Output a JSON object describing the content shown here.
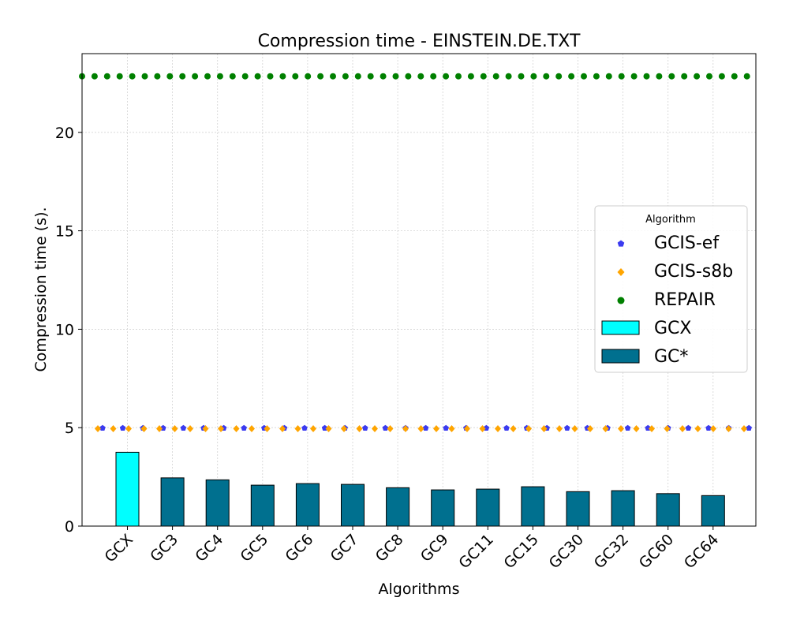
{
  "chart_data": {
    "type": "bar",
    "title": "Compression time -  EINSTEIN.DE.TXT",
    "xlabel": "Algorithms",
    "ylabel": "Compression time (s).",
    "ylim": [
      0,
      24
    ],
    "yticks": [
      0,
      5,
      10,
      15,
      20
    ],
    "grid": true,
    "legend_position": "center-right",
    "legend_title": "Algorithm",
    "categories": [
      "GCX",
      "GC3",
      "GC4",
      "GC5",
      "GC6",
      "GC7",
      "GC8",
      "GC9",
      "GC11",
      "GC15",
      "GC30",
      "GC32",
      "GC60",
      "GC64"
    ],
    "bars": [
      {
        "category": "GCX",
        "value": 3.75,
        "series": "GCX"
      },
      {
        "category": "GC3",
        "value": 2.45,
        "series": "GC*"
      },
      {
        "category": "GC4",
        "value": 2.35,
        "series": "GC*"
      },
      {
        "category": "GC5",
        "value": 2.08,
        "series": "GC*"
      },
      {
        "category": "GC6",
        "value": 2.16,
        "series": "GC*"
      },
      {
        "category": "GC7",
        "value": 2.12,
        "series": "GC*"
      },
      {
        "category": "GC8",
        "value": 1.95,
        "series": "GC*"
      },
      {
        "category": "GC9",
        "value": 1.84,
        "series": "GC*"
      },
      {
        "category": "GC11",
        "value": 1.88,
        "series": "GC*"
      },
      {
        "category": "GC15",
        "value": 2.0,
        "series": "GC*"
      },
      {
        "category": "GC30",
        "value": 1.75,
        "series": "GC*"
      },
      {
        "category": "GC32",
        "value": 1.8,
        "series": "GC*"
      },
      {
        "category": "GC60",
        "value": 1.65,
        "series": "GC*"
      },
      {
        "category": "GC64",
        "value": 1.55,
        "series": "GC*"
      }
    ],
    "reference_lines": [
      {
        "name": "GCIS-ef",
        "value": 4.98,
        "marker": "pentagon",
        "color": "#3b3bf0"
      },
      {
        "name": "GCIS-s8b",
        "value": 4.95,
        "marker": "diamond",
        "color": "#ffa500"
      },
      {
        "name": "REPAIR",
        "value": 22.85,
        "marker": "circle",
        "color": "#008000"
      }
    ],
    "series_colors": {
      "GCX": "#00ffff",
      "GC*": "#00708f"
    },
    "legend": [
      {
        "label": "GCIS-ef",
        "kind": "marker",
        "ref": "GCIS-ef"
      },
      {
        "label": "GCIS-s8b",
        "kind": "marker",
        "ref": "GCIS-s8b"
      },
      {
        "label": "REPAIR",
        "kind": "marker",
        "ref": "REPAIR"
      },
      {
        "label": "GCX",
        "kind": "bar",
        "ref": "GCX"
      },
      {
        "label": "GC*",
        "kind": "bar",
        "ref": "GC*"
      }
    ]
  }
}
